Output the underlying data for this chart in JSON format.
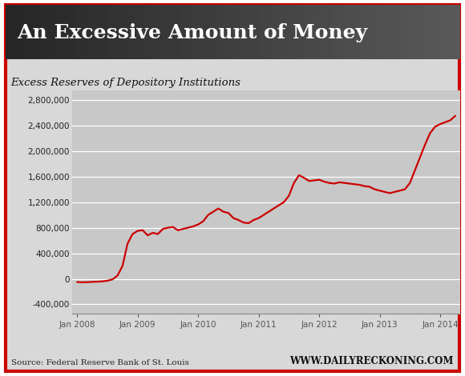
{
  "title": "An Excessive Amount of Money",
  "subtitle": "Excess Reserves of Depository Institutions",
  "source_left": "Source: Federal Reserve Bank of St. Louis",
  "source_right": "WWW.DAILYRECKONING.COM",
  "line_color": "#cc0000",
  "title_bg_color": "#222222",
  "title_text_color": "#ffffff",
  "outer_bg_color": "#ffffff",
  "chart_bg_color": "#d8d8d8",
  "plot_bg_color": "#c8c8c8",
  "border_color": "#cc0000",
  "yticks": [
    -400000,
    0,
    400000,
    800000,
    1200000,
    1600000,
    2000000,
    2400000,
    2800000
  ],
  "ylim": [
    -550000,
    2950000
  ],
  "x_labels": [
    "Jan 2008",
    "Jan 2009",
    "Jan 2010",
    "Jan 2011",
    "Jan 2012",
    "Jan 2013",
    "Jan 2014"
  ],
  "x_positions": [
    0,
    12,
    24,
    36,
    48,
    60,
    72
  ],
  "data_x": [
    0,
    1,
    2,
    3,
    4,
    5,
    6,
    7,
    8,
    9,
    10,
    11,
    12,
    13,
    14,
    15,
    16,
    17,
    18,
    19,
    20,
    21,
    22,
    23,
    24,
    25,
    26,
    27,
    28,
    29,
    30,
    31,
    32,
    33,
    34,
    35,
    36,
    37,
    38,
    39,
    40,
    41,
    42,
    43,
    44,
    45,
    46,
    47,
    48,
    49,
    50,
    51,
    52,
    53,
    54,
    55,
    56,
    57,
    58,
    59,
    60,
    61,
    62,
    63,
    64,
    65,
    66,
    67,
    68,
    69,
    70,
    71,
    72,
    73,
    74,
    75
  ],
  "data_y": [
    -50000,
    -55000,
    -52000,
    -48000,
    -45000,
    -40000,
    -30000,
    -10000,
    50000,
    200000,
    550000,
    700000,
    750000,
    760000,
    680000,
    720000,
    700000,
    780000,
    800000,
    810000,
    760000,
    780000,
    800000,
    820000,
    850000,
    900000,
    1000000,
    1050000,
    1100000,
    1050000,
    1030000,
    950000,
    920000,
    880000,
    870000,
    920000,
    950000,
    1000000,
    1050000,
    1100000,
    1150000,
    1200000,
    1300000,
    1500000,
    1620000,
    1580000,
    1530000,
    1540000,
    1550000,
    1520000,
    1500000,
    1490000,
    1510000,
    1500000,
    1490000,
    1480000,
    1470000,
    1450000,
    1440000,
    1400000,
    1380000,
    1360000,
    1340000,
    1360000,
    1380000,
    1400000,
    1500000,
    1700000,
    1900000,
    2100000,
    2280000,
    2380000,
    2420000,
    2450000,
    2480000,
    2550000
  ]
}
